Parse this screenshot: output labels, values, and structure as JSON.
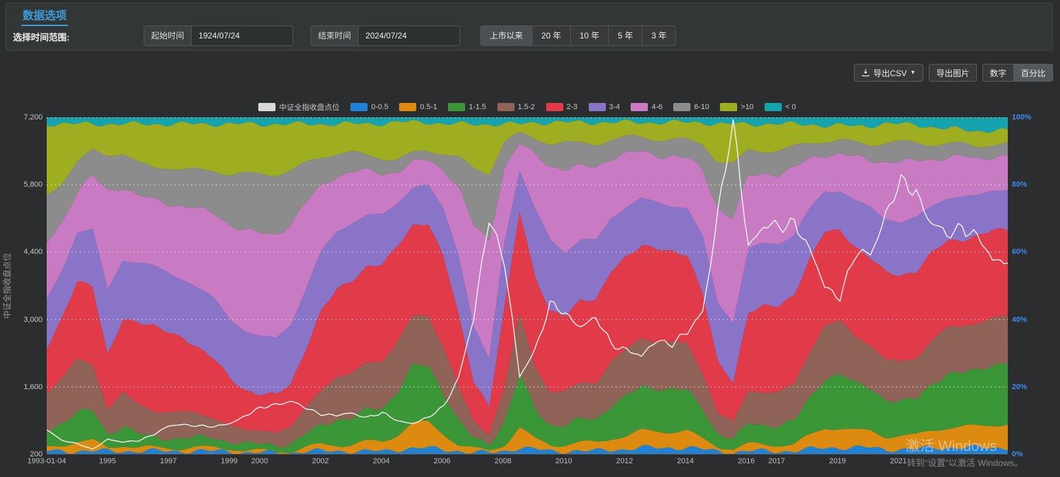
{
  "panel": {
    "title": "数据选项",
    "range_label": "选择时间范围:",
    "start": {
      "label": "起始时间",
      "value": "1924/07/24"
    },
    "end": {
      "label": "结束时间",
      "value": "2024/07/24"
    },
    "range_buttons": [
      "上市以来",
      "20 年",
      "10 年",
      "5 年",
      "3 年"
    ],
    "active_range": "上市以来"
  },
  "toolbar": {
    "export_csv": "导出CSV",
    "export_image": "导出图片",
    "mode_number": "数字",
    "mode_percent": "百分比",
    "active_mode": "百分比"
  },
  "watermark": {
    "line1": "激活 Windows",
    "line2": "转到“设置”以激活 Windows。"
  },
  "colors": {
    "accent_blue": "#3e9ddd",
    "right_axis_blue": "#3d8df5",
    "left_axis_text": "#c8c8c8"
  },
  "chart_data": {
    "type": "area",
    "stacked_percent": true,
    "grid": true,
    "legend_position": "top",
    "legend_line_swatch": "#d9d9d9",
    "x_range": [
      1993,
      2024.5
    ],
    "x_ticks": [
      "1993-01-04",
      "1995",
      "1997",
      "1999",
      "2000",
      "2002",
      "2004",
      "2006",
      "2008",
      "2010",
      "2012",
      "2014",
      "2016",
      "2017",
      "2019",
      "2021"
    ],
    "y_left": {
      "label": "中证全指收盘点位",
      "min": 200,
      "max": 7200,
      "ticks": [
        "200",
        "1,600",
        "3,000",
        "4,400",
        "5,800",
        "7,200"
      ]
    },
    "y_right": {
      "ticks": [
        "0%",
        "20%",
        "40%",
        "60%",
        "80%",
        "100%"
      ]
    },
    "line_series": {
      "name": "中证全指收盘点位",
      "color": "#ffffff",
      "values": [
        700,
        500,
        420,
        300,
        520,
        450,
        480,
        620,
        780,
        820,
        800,
        760,
        850,
        1000,
        1150,
        1250,
        1300,
        1150,
        1050,
        1000,
        1050,
        980,
        1050,
        900,
        850,
        950,
        1200,
        1800,
        3000,
        5200,
        4200,
        1800,
        2400,
        3300,
        3100,
        2900,
        3000,
        2500,
        2400,
        2200,
        2600,
        2500,
        2700,
        3200,
        5200,
        7050,
        4600,
        4900,
        4900,
        5100,
        4400,
        3700,
        3500,
        4300,
        4400,
        5200,
        5800,
        5700,
        5000,
        4700,
        5000,
        4700,
        4200,
        4300
      ]
    },
    "bands": [
      {
        "name": "0-0.5",
        "color": "#1e82d6",
        "values": [
          1,
          1,
          1,
          1,
          1,
          1,
          1,
          1,
          1,
          1,
          1,
          1,
          1,
          0.5,
          0.5,
          0.5,
          0.5,
          1,
          1,
          1,
          1,
          1,
          1,
          1.5,
          2,
          2,
          1.5,
          1,
          0.5,
          0.5,
          1,
          2,
          1.5,
          1,
          1,
          1,
          1,
          1.5,
          1.5,
          2,
          2,
          2,
          2,
          1.5,
          1,
          0.5,
          1,
          1,
          1,
          1,
          1.5,
          2,
          2,
          2,
          2,
          1.5,
          1.5,
          1.5,
          2,
          2,
          2,
          2,
          2,
          2
        ]
      },
      {
        "name": "0.5-1",
        "color": "#dc8b10",
        "values": [
          1,
          2,
          3,
          3,
          1,
          2,
          1,
          1,
          1,
          1,
          1,
          1,
          1,
          0.5,
          0.5,
          0.5,
          0.5,
          1,
          2,
          2,
          2,
          3,
          3,
          5,
          8,
          8,
          5,
          2,
          1,
          0.5,
          2,
          6,
          3,
          2,
          2,
          2.5,
          2.5,
          3.5,
          4,
          5,
          5,
          5,
          5,
          3,
          1.5,
          1,
          2,
          2,
          2,
          2,
          4,
          6,
          6,
          5,
          5,
          4,
          4,
          4,
          5.5,
          6,
          6,
          6.5,
          7,
          7
        ]
      },
      {
        "name": "1-1.5",
        "color": "#3a9637",
        "values": [
          5,
          7,
          9,
          9,
          4,
          6,
          4,
          3,
          3,
          3,
          3,
          3,
          2,
          2,
          2,
          2,
          2,
          4,
          6,
          8,
          8,
          10,
          11,
          14,
          18,
          18,
          13,
          7,
          3,
          2,
          7,
          16,
          9,
          6,
          6,
          7,
          7,
          10,
          12,
          13,
          13,
          13,
          12,
          9,
          4,
          3,
          6,
          6,
          6,
          7,
          11,
          15,
          16,
          14,
          13,
          11,
          10,
          11,
          14,
          16,
          16,
          17,
          18,
          18
        ]
      },
      {
        "name": "1.5-2",
        "color": "#8f6358",
        "values": [
          12,
          14,
          16,
          14,
          8,
          10,
          9,
          8,
          8,
          8,
          7,
          6,
          5,
          4,
          4,
          4,
          5,
          8,
          11,
          13,
          14,
          15,
          15,
          16,
          16,
          16,
          14,
          10,
          5,
          3,
          10,
          18,
          13,
          10,
          10,
          11,
          11,
          13,
          14,
          15,
          14,
          14,
          14,
          11,
          6,
          5,
          10,
          10,
          10,
          11,
          14,
          16,
          16,
          14,
          13,
          12,
          12,
          12,
          13,
          14,
          14,
          14,
          14,
          14
        ]
      },
      {
        "name": "2-3",
        "color": "#e13b49",
        "values": [
          14,
          18,
          24,
          24,
          16,
          22,
          25,
          26,
          24,
          22,
          20,
          18,
          14,
          12,
          11,
          11,
          13,
          18,
          24,
          27,
          29,
          30,
          31,
          31,
          29,
          29,
          28,
          22,
          12,
          8,
          24,
          31,
          27,
          24,
          23,
          25,
          25,
          27,
          28,
          28,
          28,
          27,
          27,
          24,
          15,
          12,
          24,
          26,
          26,
          27,
          28,
          28,
          27,
          27,
          26,
          26,
          26,
          26,
          26,
          26,
          26,
          26,
          26,
          26
        ]
      },
      {
        "name": "3-4",
        "color": "#8a74c8",
        "values": [
          15,
          15,
          15,
          17,
          20,
          18,
          18,
          18,
          18,
          18,
          18,
          18,
          18,
          18,
          17,
          17,
          18,
          18,
          18,
          18,
          18,
          16,
          16,
          14,
          12,
          12,
          15,
          18,
          16,
          14,
          20,
          12,
          20,
          22,
          19,
          18,
          18,
          16,
          15,
          14,
          14,
          14,
          14,
          17,
          18,
          18,
          19,
          19,
          19,
          18,
          15,
          12,
          12,
          14,
          15,
          16,
          16,
          16,
          14,
          13,
          13,
          12,
          12,
          12
        ]
      },
      {
        "name": "4-6",
        "color": "#c87bc3",
        "values": [
          18,
          15,
          12,
          16,
          30,
          22,
          20,
          20,
          21,
          22,
          24,
          26,
          28,
          30,
          31,
          31,
          30,
          26,
          20,
          17,
          16,
          14,
          13,
          10,
          8,
          8,
          12,
          20,
          30,
          35,
          22,
          8,
          16,
          22,
          25,
          22,
          22,
          18,
          16,
          14,
          14,
          15,
          15,
          20,
          28,
          31,
          22,
          21,
          21,
          20,
          15,
          11,
          11,
          13,
          14,
          17,
          18,
          17,
          14,
          12,
          12,
          11,
          10,
          10
        ]
      },
      {
        "name": "6-10",
        "color": "#8c8c8c",
        "values": [
          15,
          12,
          9,
          8,
          11,
          10,
          10,
          10,
          11,
          11,
          12,
          13,
          15,
          17,
          18,
          18,
          16,
          12,
          9,
          7,
          6,
          5,
          5,
          4,
          3,
          3,
          5,
          9,
          17,
          20,
          8,
          3,
          5,
          7,
          8,
          7,
          7,
          5.5,
          5,
          4.5,
          5,
          5,
          5.5,
          8,
          14,
          16,
          8,
          7,
          7,
          6.5,
          5,
          4,
          4,
          4.5,
          5,
          5.5,
          6,
          5.5,
          4.5,
          4,
          4,
          4,
          3.5,
          3.5
        ]
      },
      {
        "name": ">10",
        "color": "#9fae20",
        "values": [
          22,
          18,
          12,
          8,
          9,
          9,
          12,
          13,
          13,
          14,
          14,
          14,
          15,
          15,
          15,
          15,
          14,
          12,
          10,
          9,
          9,
          10,
          11,
          12,
          10,
          9,
          9,
          10,
          13.5,
          14.5,
          5,
          3,
          5,
          6,
          6,
          6.5,
          6.5,
          5,
          4.5,
          4.5,
          5,
          5,
          5.5,
          6.5,
          11,
          12,
          8,
          8,
          8,
          7,
          5.5,
          4.5,
          4.5,
          5,
          5.5,
          5.5,
          5.5,
          5.5,
          5,
          4.5,
          4.5,
          4.5,
          4,
          4
        ]
      },
      {
        "name": "< 0",
        "color": "#17a3ad",
        "values": [
          2,
          2,
          2,
          2,
          2,
          2,
          2,
          2,
          2,
          2,
          2,
          2,
          2,
          2,
          2,
          2,
          2,
          2,
          2,
          2,
          2,
          2,
          2,
          1.5,
          1.5,
          1.5,
          2,
          2,
          2,
          2,
          2,
          2,
          1.5,
          1.5,
          1.5,
          1.5,
          1.5,
          1.5,
          1.5,
          1.5,
          1.5,
          1.5,
          1.5,
          1.5,
          2,
          2,
          2,
          2,
          2,
          2,
          2,
          2.5,
          2.5,
          2.5,
          2.5,
          2,
          2,
          2,
          3,
          3.5,
          3.5,
          4,
          4,
          4
        ]
      }
    ]
  }
}
